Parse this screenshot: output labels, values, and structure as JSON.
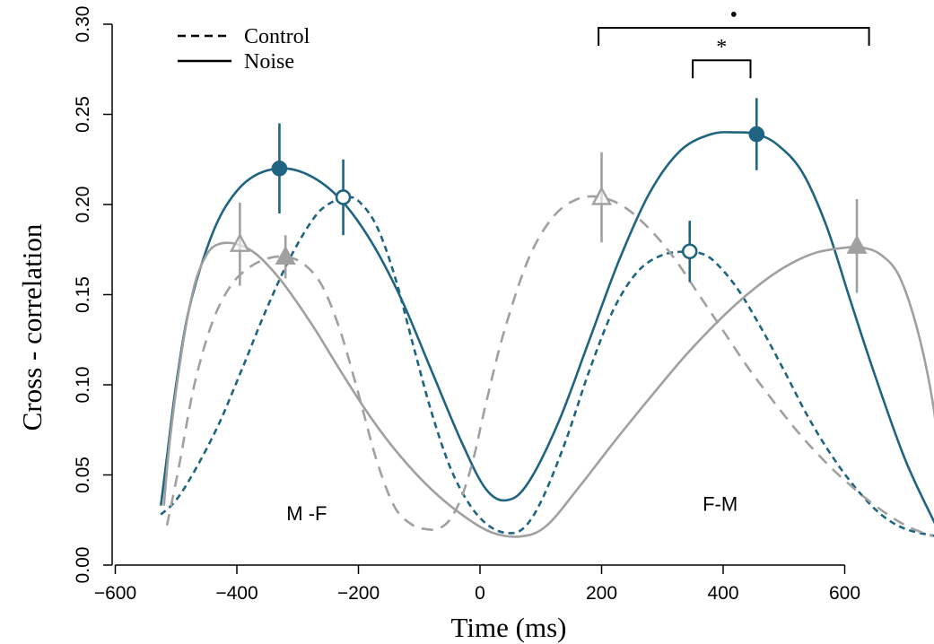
{
  "chart_data": {
    "type": "line",
    "xlabel": "Time (ms)",
    "ylabel": "Cross - correlation",
    "xlim": [
      -610,
      760
    ],
    "ylim": [
      0.0,
      0.3
    ],
    "x_ticks": [
      -600,
      -400,
      -200,
      0,
      200,
      400,
      600
    ],
    "x_tick_labels": [
      "−600",
      "−400",
      "−200",
      "0",
      "200",
      "400",
      "600"
    ],
    "y_ticks": [
      0.0,
      0.05,
      0.1,
      0.15,
      0.2,
      0.25,
      0.3
    ],
    "y_tick_labels": [
      "0.00",
      "0.05",
      "0.10",
      "0.15",
      "0.20",
      "0.25",
      "0.30"
    ],
    "grid": false,
    "legend": {
      "placement": "top-left",
      "entries": [
        {
          "label": "Control",
          "style": "dashed"
        },
        {
          "label": "Noise",
          "style": "solid"
        }
      ]
    },
    "colors": {
      "blue": "#1f6480",
      "gray": "#a0a0a0"
    },
    "series": [
      {
        "color": "blue",
        "style": "solid",
        "x": [
          -525,
          -515,
          -500,
          -480,
          -450,
          -420,
          -380,
          -330,
          -280,
          -230,
          -180,
          -130,
          -80,
          -30,
          10,
          45,
          80,
          130,
          180,
          230,
          280,
          330,
          380,
          420,
          455,
          490,
          530,
          570,
          610,
          650,
          700,
          750
        ],
        "y": [
          0.033,
          0.06,
          0.1,
          0.14,
          0.175,
          0.198,
          0.214,
          0.22,
          0.216,
          0.203,
          0.18,
          0.148,
          0.108,
          0.068,
          0.042,
          0.036,
          0.046,
          0.08,
          0.125,
          0.17,
          0.207,
          0.23,
          0.239,
          0.24,
          0.239,
          0.233,
          0.218,
          0.188,
          0.146,
          0.105,
          0.058,
          0.022
        ]
      },
      {
        "color": "blue",
        "style": "dashed",
        "x": [
          -525,
          -500,
          -470,
          -430,
          -390,
          -350,
          -310,
          -270,
          -240,
          -220,
          -200,
          -170,
          -140,
          -110,
          -80,
          -50,
          -20,
          10,
          40,
          70,
          100,
          140,
          180,
          220,
          260,
          300,
          340,
          350,
          380,
          420,
          460,
          500,
          540,
          580,
          620,
          660,
          700,
          750
        ],
        "y": [
          0.028,
          0.036,
          0.052,
          0.078,
          0.11,
          0.143,
          0.172,
          0.194,
          0.202,
          0.204,
          0.202,
          0.188,
          0.16,
          0.122,
          0.085,
          0.055,
          0.035,
          0.023,
          0.018,
          0.02,
          0.035,
          0.068,
          0.108,
          0.142,
          0.163,
          0.172,
          0.174,
          0.174,
          0.17,
          0.155,
          0.133,
          0.108,
          0.082,
          0.06,
          0.042,
          0.028,
          0.02,
          0.016
        ]
      },
      {
        "color": "gray",
        "style": "solid",
        "x": [
          -520,
          -510,
          -490,
          -470,
          -450,
          -430,
          -400,
          -370,
          -340,
          -310,
          -270,
          -230,
          -180,
          -130,
          -80,
          -30,
          20,
          70,
          110,
          160,
          220,
          280,
          340,
          400,
          450,
          500,
          550,
          600,
          630,
          660,
          690,
          720,
          745,
          755
        ],
        "y": [
          0.033,
          0.07,
          0.12,
          0.155,
          0.172,
          0.178,
          0.178,
          0.173,
          0.163,
          0.15,
          0.13,
          0.108,
          0.082,
          0.06,
          0.042,
          0.028,
          0.018,
          0.016,
          0.022,
          0.042,
          0.068,
          0.093,
          0.117,
          0.138,
          0.153,
          0.165,
          0.173,
          0.176,
          0.176,
          0.172,
          0.16,
          0.13,
          0.09,
          0.06
        ]
      },
      {
        "color": "gray",
        "style": "dashed",
        "x": [
          -515,
          -495,
          -470,
          -440,
          -410,
          -380,
          -350,
          -320,
          -290,
          -260,
          -230,
          -200,
          -170,
          -140,
          -110,
          -90,
          -70,
          -50,
          -30,
          -10,
          10,
          40,
          80,
          120,
          160,
          200,
          240,
          280,
          320,
          360,
          400,
          440,
          480,
          520,
          560,
          600,
          650,
          700,
          745
        ],
        "y": [
          0.022,
          0.055,
          0.1,
          0.135,
          0.155,
          0.165,
          0.17,
          0.171,
          0.167,
          0.155,
          0.13,
          0.095,
          0.058,
          0.032,
          0.022,
          0.02,
          0.02,
          0.025,
          0.038,
          0.06,
          0.09,
          0.13,
          0.17,
          0.193,
          0.203,
          0.204,
          0.198,
          0.186,
          0.17,
          0.15,
          0.13,
          0.11,
          0.092,
          0.075,
          0.06,
          0.047,
          0.033,
          0.022,
          0.016
        ]
      }
    ],
    "markers": [
      {
        "x": -330,
        "y": 0.22,
        "err": 0.025,
        "color": "blue",
        "shape": "circle",
        "filled": true
      },
      {
        "x": -225,
        "y": 0.204,
        "err": 0.021,
        "color": "blue",
        "shape": "circle",
        "filled": false
      },
      {
        "x": 455,
        "y": 0.239,
        "err": 0.02,
        "color": "blue",
        "shape": "circle",
        "filled": true
      },
      {
        "x": 345,
        "y": 0.174,
        "err": 0.017,
        "color": "blue",
        "shape": "circle",
        "filled": false
      },
      {
        "x": -395,
        "y": 0.178,
        "err": 0.023,
        "color": "gray",
        "shape": "triangle",
        "filled": false
      },
      {
        "x": -320,
        "y": 0.171,
        "err": 0.012,
        "color": "gray",
        "shape": "triangle",
        "filled": true
      },
      {
        "x": 200,
        "y": 0.204,
        "err": 0.025,
        "color": "gray",
        "shape": "triangle",
        "filled": false
      },
      {
        "x": 620,
        "y": 0.177,
        "err": 0.026,
        "color": "gray",
        "shape": "triangle",
        "filled": true
      }
    ],
    "annotations": [
      {
        "text": "M -F",
        "x": -285,
        "y": 0.025
      },
      {
        "text": "F-M",
        "x": 395,
        "y": 0.03
      }
    ],
    "significance": [
      {
        "label": "•",
        "x1": 195,
        "x2": 640,
        "y": 0.298
      },
      {
        "label": "*",
        "x1": 350,
        "x2": 445,
        "y": 0.28
      }
    ]
  }
}
